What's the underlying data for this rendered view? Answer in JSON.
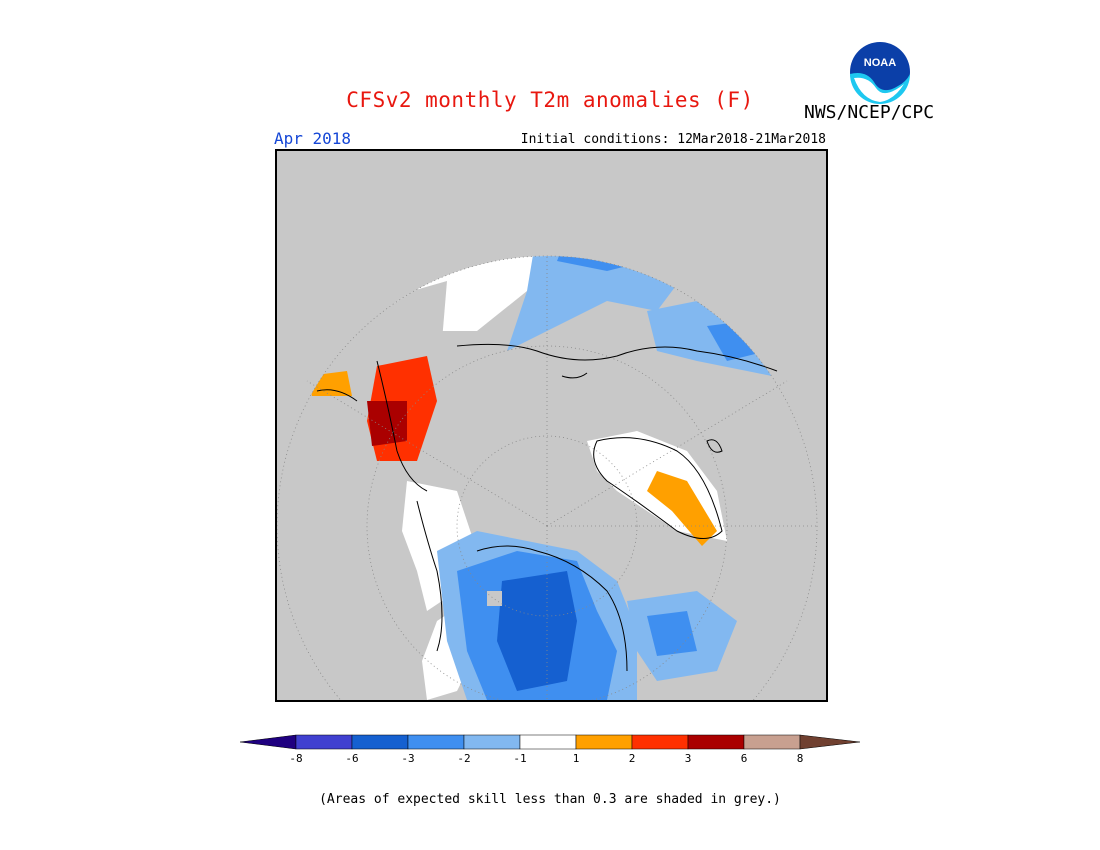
{
  "title": "CFSv2 monthly T2m anomalies (F)",
  "agency": "NWS/NCEP/CPC",
  "logo_text": "NOAA",
  "month": "Apr 2018",
  "initial_conditions": "Initial conditions: 12Mar2018-21Mar2018",
  "note": "(Areas of expected skill less than 0.3 are shaded in grey.)",
  "colors": {
    "low_skill_grey": "#c8c8c8",
    "bins": [
      "#1f0080",
      "#4040d0",
      "#1560d0",
      "#3f8ff0",
      "#82b8f0",
      "#ffffff",
      "#ffa000",
      "#ff3000",
      "#aa0000",
      "#c8a090",
      "#704030"
    ]
  },
  "legend": {
    "ticks": [
      "-8",
      "-6",
      "-3",
      "-2",
      "-1",
      "1",
      "2",
      "3",
      "6",
      "8"
    ]
  }
}
